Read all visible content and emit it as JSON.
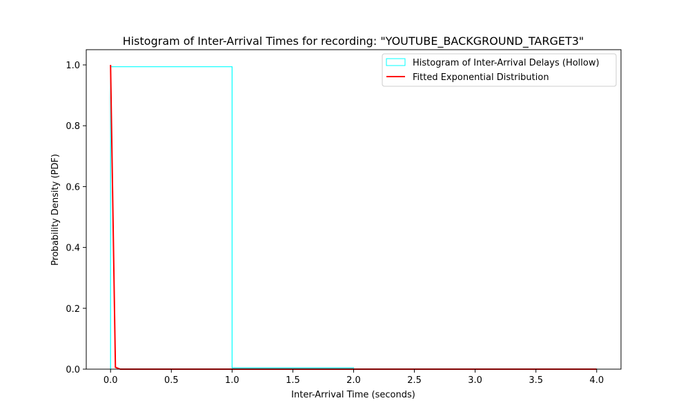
{
  "chart_data": {
    "type": "line",
    "title": "Histogram of Inter-Arrival Times for recording: \"YOUTUBE_BACKGROUND_TARGET3\"",
    "xlabel": "Inter-Arrival Time (seconds)",
    "ylabel": "Probability Density (PDF)",
    "xlim": [
      -0.2,
      4.2
    ],
    "ylim": [
      0,
      1.05
    ],
    "xticks": [
      0.0,
      0.5,
      1.0,
      1.5,
      2.0,
      2.5,
      3.0,
      3.5,
      4.0
    ],
    "xtick_labels": [
      "0.0",
      "0.5",
      "1.0",
      "1.5",
      "2.0",
      "2.5",
      "3.0",
      "3.5",
      "4.0"
    ],
    "yticks": [
      0.0,
      0.2,
      0.4,
      0.6,
      0.8,
      1.0
    ],
    "ytick_labels": [
      "0.0",
      "0.2",
      "0.4",
      "0.6",
      "0.8",
      "1.0"
    ],
    "grid": false,
    "legend_position": "top-right",
    "histogram": {
      "name": "Histogram of Inter-Arrival Delays (Hollow)",
      "color": "#00ffff",
      "bin_edges": [
        0,
        1,
        2,
        3,
        4
      ],
      "values": [
        0.994,
        0.004,
        0.001,
        0.001
      ]
    },
    "series": [
      {
        "name": "Fitted Exponential Distribution",
        "color": "#ff0000",
        "x": [
          0.0,
          0.04,
          0.08,
          0.5,
          1.0,
          2.0,
          3.0,
          4.0
        ],
        "y": [
          1.0,
          0.006,
          0.0,
          0.0,
          0.0,
          0.0,
          0.0,
          0.0
        ]
      }
    ]
  }
}
